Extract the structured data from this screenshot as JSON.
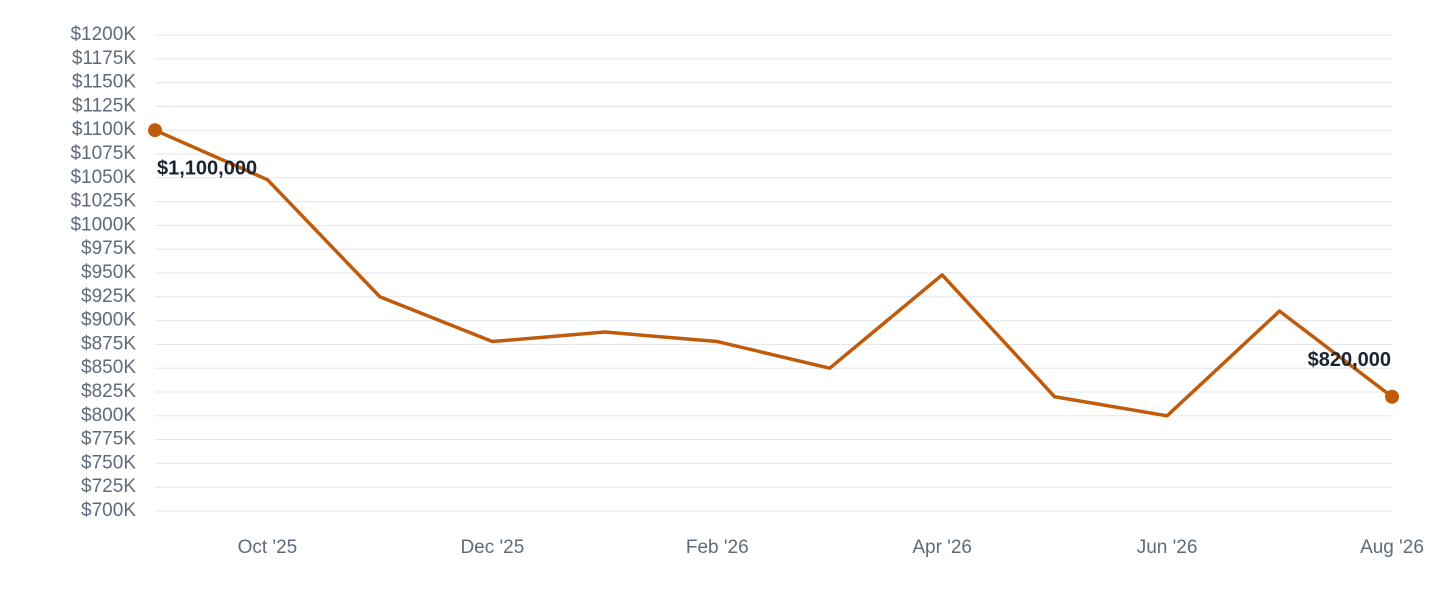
{
  "chart_data": {
    "type": "line",
    "categories": [
      null,
      "Oct '25",
      null,
      "Dec '25",
      null,
      "Feb '26",
      null,
      "Apr '26",
      null,
      "Jun '26",
      null,
      "Aug '26"
    ],
    "values": [
      1100000,
      1048000,
      925000,
      878000,
      888000,
      878000,
      850000,
      948000,
      820000,
      800000,
      910000,
      820000
    ],
    "value_labels": [
      "$1,100,000",
      null,
      null,
      null,
      null,
      null,
      null,
      null,
      null,
      null,
      null,
      "$820,000"
    ],
    "color": "#bf5b0a",
    "ylim": [
      700000,
      1200000
    ],
    "yticks": [
      {
        "value": 700000,
        "label": "$700K"
      },
      {
        "value": 725000,
        "label": "$725K"
      },
      {
        "value": 750000,
        "label": "$750K"
      },
      {
        "value": 775000,
        "label": "$775K"
      },
      {
        "value": 800000,
        "label": "$800K"
      },
      {
        "value": 825000,
        "label": "$825K"
      },
      {
        "value": 850000,
        "label": "$850K"
      },
      {
        "value": 875000,
        "label": "$875K"
      },
      {
        "value": 900000,
        "label": "$900K"
      },
      {
        "value": 925000,
        "label": "$925K"
      },
      {
        "value": 950000,
        "label": "$950K"
      },
      {
        "value": 975000,
        "label": "$975K"
      },
      {
        "value": 1000000,
        "label": "$1000K"
      },
      {
        "value": 1025000,
        "label": "$1025K"
      },
      {
        "value": 1050000,
        "label": "$1050K"
      },
      {
        "value": 1075000,
        "label": "$1075K"
      },
      {
        "value": 1100000,
        "label": "$1100K"
      },
      {
        "value": 1125000,
        "label": "$1125K"
      },
      {
        "value": 1150000,
        "label": "$1150K"
      },
      {
        "value": 1175000,
        "label": "$1175K"
      },
      {
        "value": 1200000,
        "label": "$1200K"
      }
    ],
    "grid": true
  }
}
